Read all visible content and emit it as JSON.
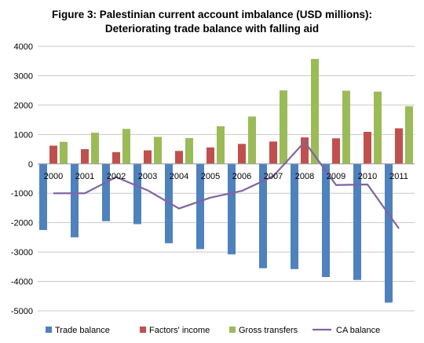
{
  "chart_data": {
    "type": "bar",
    "title": "Figure 3: Palestinian current account imbalance (USD millions):",
    "subtitle": "Deteriorating trade balance with falling aid",
    "categories": [
      "2000",
      "2001",
      "2002",
      "2003",
      "2004",
      "2005",
      "2006",
      "2007",
      "2008",
      "2009",
      "2010",
      "2011"
    ],
    "ylim": [
      -5000,
      4000
    ],
    "yticks": [
      4000,
      3000,
      2000,
      1000,
      0,
      -1000,
      -2000,
      -3000,
      -4000,
      -5000
    ],
    "grid": true,
    "legend_position": "bottom",
    "series": [
      {
        "name": "Trade balance",
        "kind": "bar",
        "color": "#4f81bd",
        "values": [
          -2250,
          -2500,
          -1950,
          -2050,
          -2700,
          -2900,
          -3080,
          -3550,
          -3580,
          -3850,
          -3950,
          -4720
        ]
      },
      {
        "name": "Factors' income",
        "kind": "bar",
        "color": "#c0504d",
        "values": [
          620,
          500,
          400,
          460,
          440,
          560,
          680,
          760,
          900,
          870,
          1090,
          1210
        ]
      },
      {
        "name": "Gross transfers",
        "kind": "bar",
        "color": "#9bbb59",
        "values": [
          750,
          1060,
          1190,
          920,
          880,
          1280,
          1610,
          2500,
          3570,
          2490,
          2460,
          1960
        ]
      },
      {
        "name": "CA balance",
        "kind": "line",
        "color": "#8064a2",
        "values": [
          -1000,
          -1000,
          -450,
          -900,
          -1520,
          -1150,
          -920,
          -420,
          750,
          -720,
          -700,
          -2200
        ]
      }
    ]
  }
}
